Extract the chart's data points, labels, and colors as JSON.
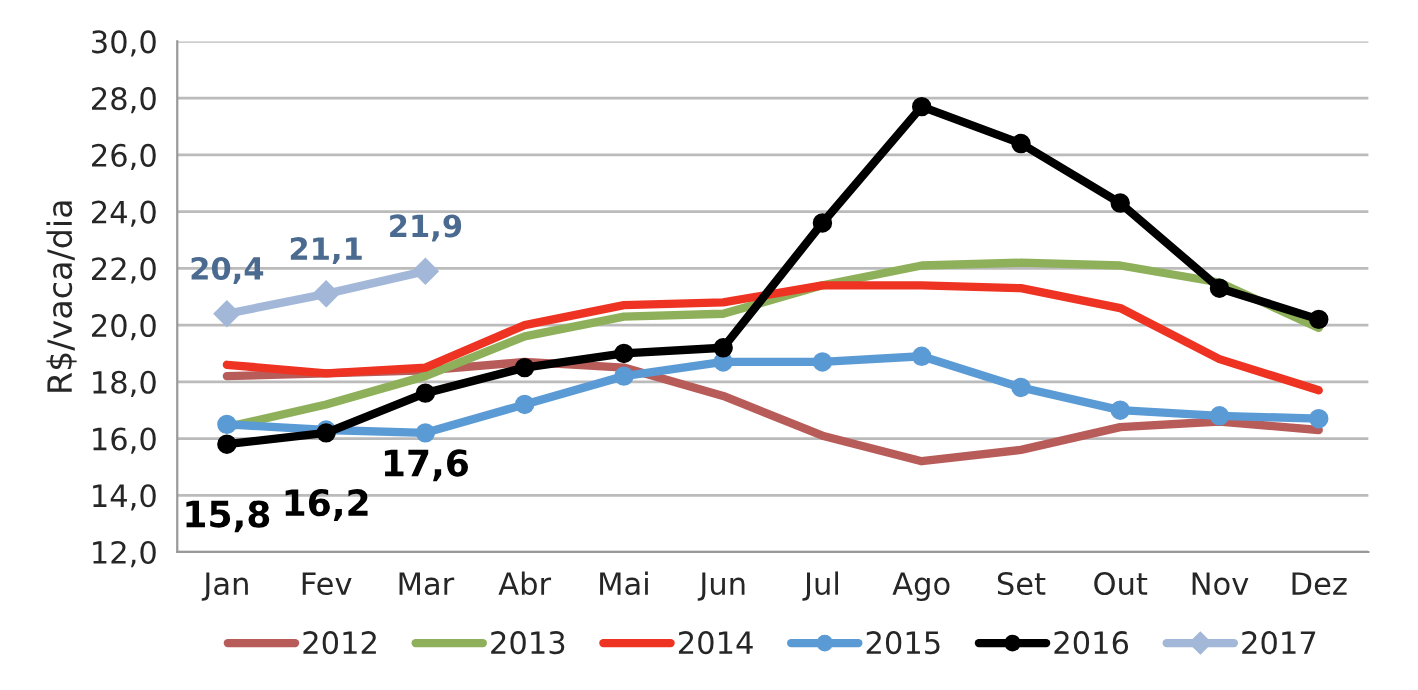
{
  "chart_data": {
    "type": "line",
    "ylabel": "R$/vaca/dia",
    "categories": [
      "Jan",
      "Fev",
      "Mar",
      "Abr",
      "Mai",
      "Jun",
      "Jul",
      "Ago",
      "Set",
      "Out",
      "Nov",
      "Dez"
    ],
    "series": [
      {
        "name": "2012",
        "color": "#b85c5a",
        "marker": "none",
        "values": [
          18.2,
          18.3,
          18.4,
          18.7,
          18.5,
          17.5,
          16.1,
          15.2,
          15.6,
          16.4,
          16.6,
          16.3
        ]
      },
      {
        "name": "2013",
        "color": "#8fb05a",
        "marker": "none",
        "values": [
          16.4,
          17.2,
          18.2,
          19.6,
          20.3,
          20.4,
          21.4,
          22.1,
          22.2,
          22.1,
          21.5,
          19.9
        ]
      },
      {
        "name": "2014",
        "color": "#ee3322",
        "marker": "none",
        "values": [
          18.6,
          18.3,
          18.5,
          20.0,
          20.7,
          20.8,
          21.4,
          21.4,
          21.3,
          20.6,
          18.8,
          17.7
        ]
      },
      {
        "name": "2015",
        "color": "#5b9bd5",
        "marker": "circle",
        "values": [
          16.5,
          16.3,
          16.2,
          17.2,
          18.2,
          18.7,
          18.7,
          18.9,
          17.8,
          17.0,
          16.8,
          16.7
        ]
      },
      {
        "name": "2016",
        "color": "#000000",
        "marker": "circle",
        "values": [
          15.8,
          16.2,
          17.6,
          18.5,
          19.0,
          19.2,
          23.6,
          27.7,
          26.4,
          24.3,
          21.3,
          20.2
        ],
        "value_labels": [
          "15,8",
          "16,2",
          "17,6",
          null,
          null,
          null,
          null,
          null,
          null,
          null,
          null,
          null
        ]
      },
      {
        "name": "2017",
        "color": "#a3b8d8",
        "marker": "diamond",
        "values": [
          20.4,
          21.1,
          21.9,
          null,
          null,
          null,
          null,
          null,
          null,
          null,
          null,
          null
        ],
        "value_labels": [
          "20,4",
          "21,1",
          "21,9",
          null,
          null,
          null,
          null,
          null,
          null,
          null,
          null,
          null
        ]
      }
    ],
    "ylim": [
      12,
      30
    ],
    "yticks": [
      {
        "value": 12,
        "label": "12,0"
      },
      {
        "value": 14,
        "label": "14,0"
      },
      {
        "value": 16,
        "label": "16,0"
      },
      {
        "value": 18,
        "label": "18,0"
      },
      {
        "value": 20,
        "label": "20,0"
      },
      {
        "value": 22,
        "label": "22,0"
      },
      {
        "value": 24,
        "label": "24,0"
      },
      {
        "value": 26,
        "label": "26,0"
      },
      {
        "value": 28,
        "label": "28,0"
      },
      {
        "value": 30,
        "label": "30,0"
      }
    ],
    "grid": "y",
    "legend": "bottom"
  }
}
